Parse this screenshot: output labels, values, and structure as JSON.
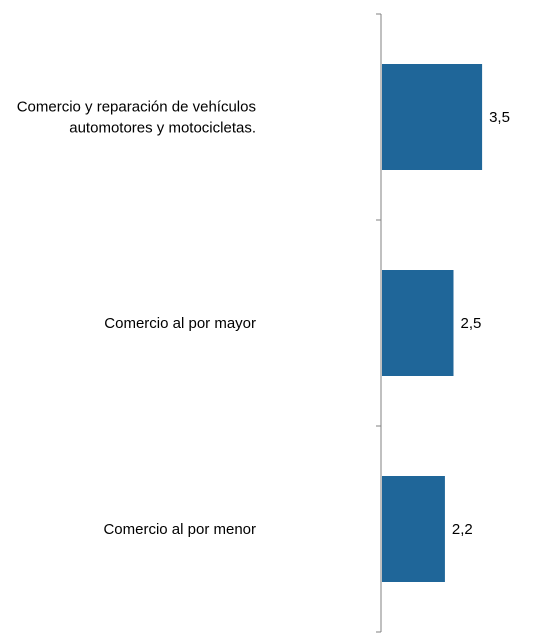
{
  "chart_data": {
    "type": "bar",
    "orientation": "horizontal",
    "categories": [
      [
        "Comercio y reparación de vehículos",
        "automotores y motocicletas."
      ],
      [
        "Comercio al por mayor"
      ],
      [
        "Comercio al por menor"
      ]
    ],
    "values": [
      3.5,
      2.5,
      2.2
    ],
    "value_labels": [
      "3,5",
      "2,5",
      "2,2"
    ],
    "xlim": [
      0,
      7
    ],
    "bar_color": "#1f6699",
    "grid": false,
    "legend": "none"
  }
}
